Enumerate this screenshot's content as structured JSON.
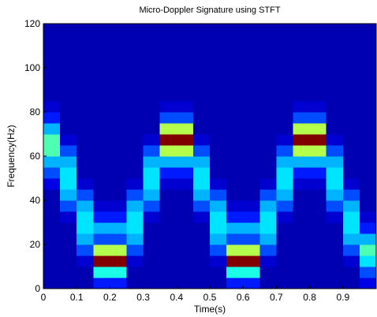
{
  "chart_data": {
    "type": "heatmap",
    "title": "Micro-Doppler Signature using STFT",
    "x_label": "Time(s)",
    "y_label": "Frequency(Hz)",
    "colormap": "jet",
    "xbins": [
      0,
      0.05,
      0.1,
      0.15,
      0.2,
      0.25,
      0.3,
      0.35,
      0.4,
      0.45,
      0.5,
      0.55,
      0.6,
      0.65,
      0.7,
      0.75,
      0.8,
      0.85,
      0.9,
      0.95,
      1
    ],
    "ybins": [
      0,
      5,
      10,
      15,
      20,
      25,
      30,
      35,
      40,
      45,
      50,
      55,
      60,
      65,
      70,
      75,
      80,
      85,
      90,
      95,
      100,
      105,
      110,
      115,
      120
    ],
    "z": [
      [
        0.05,
        0.05,
        0.05,
        0.15,
        0.15,
        0.05,
        0.05,
        0.05,
        0.05,
        0.05,
        0.05,
        0.15,
        0.15,
        0.05,
        0.05,
        0.05,
        0.05,
        0.05,
        0.05,
        0.1
      ],
      [
        0.05,
        0.05,
        0.05,
        0.4,
        0.4,
        0.05,
        0.05,
        0.05,
        0.05,
        0.05,
        0.05,
        0.4,
        0.4,
        0.05,
        0.05,
        0.05,
        0.05,
        0.05,
        0.05,
        0.2
      ],
      [
        0.05,
        0.05,
        0.08,
        1,
        1,
        0.08,
        0.05,
        0.05,
        0.05,
        0.05,
        0.08,
        1,
        1,
        0.08,
        0.05,
        0.05,
        0.05,
        0.05,
        0.08,
        0.35
      ],
      [
        0.05,
        0.05,
        0.2,
        0.55,
        0.55,
        0.2,
        0.05,
        0.05,
        0.05,
        0.05,
        0.2,
        0.55,
        0.55,
        0.2,
        0.05,
        0.05,
        0.05,
        0.05,
        0.2,
        0.45
      ],
      [
        0.05,
        0.05,
        0.3,
        0.2,
        0.2,
        0.3,
        0.05,
        0.05,
        0.05,
        0.05,
        0.3,
        0.2,
        0.2,
        0.3,
        0.05,
        0.05,
        0.05,
        0.05,
        0.3,
        0.3
      ],
      [
        0.05,
        0.05,
        0.35,
        0.3,
        0.3,
        0.35,
        0.05,
        0.05,
        0.05,
        0.05,
        0.35,
        0.3,
        0.3,
        0.35,
        0.05,
        0.05,
        0.05,
        0.05,
        0.35,
        0.15
      ],
      [
        0.05,
        0.08,
        0.35,
        0.15,
        0.15,
        0.35,
        0.08,
        0.05,
        0.05,
        0.08,
        0.35,
        0.15,
        0.15,
        0.35,
        0.08,
        0.05,
        0.05,
        0.08,
        0.35,
        0.08
      ],
      [
        0.05,
        0.2,
        0.3,
        0.08,
        0.08,
        0.3,
        0.2,
        0.05,
        0.05,
        0.2,
        0.3,
        0.08,
        0.08,
        0.3,
        0.2,
        0.05,
        0.05,
        0.2,
        0.3,
        0.05
      ],
      [
        0.05,
        0.3,
        0.2,
        0.05,
        0.05,
        0.2,
        0.3,
        0.05,
        0.05,
        0.3,
        0.2,
        0.05,
        0.05,
        0.2,
        0.3,
        0.05,
        0.05,
        0.3,
        0.2,
        0.05
      ],
      [
        0.1,
        0.35,
        0.08,
        0.05,
        0.05,
        0.08,
        0.35,
        0.08,
        0.08,
        0.35,
        0.08,
        0.05,
        0.05,
        0.08,
        0.35,
        0.08,
        0.08,
        0.35,
        0.08,
        0.05
      ],
      [
        0.2,
        0.35,
        0.05,
        0.05,
        0.05,
        0.05,
        0.35,
        0.15,
        0.15,
        0.35,
        0.05,
        0.05,
        0.05,
        0.05,
        0.35,
        0.15,
        0.15,
        0.35,
        0.05,
        0.05
      ],
      [
        0.3,
        0.3,
        0.05,
        0.05,
        0.05,
        0.05,
        0.3,
        0.3,
        0.3,
        0.3,
        0.05,
        0.05,
        0.05,
        0.05,
        0.3,
        0.3,
        0.3,
        0.3,
        0.05,
        0.05
      ],
      [
        0.45,
        0.2,
        0.05,
        0.05,
        0.05,
        0.05,
        0.2,
        0.55,
        0.55,
        0.2,
        0.05,
        0.05,
        0.05,
        0.05,
        0.2,
        0.55,
        0.55,
        0.2,
        0.05,
        0.05
      ],
      [
        0.45,
        0.08,
        0.05,
        0.05,
        0.05,
        0.05,
        0.08,
        1,
        1,
        0.08,
        0.05,
        0.05,
        0.05,
        0.05,
        0.08,
        1,
        1,
        0.08,
        0.05,
        0.05
      ],
      [
        0.3,
        0.05,
        0.05,
        0.05,
        0.05,
        0.05,
        0.05,
        0.55,
        0.55,
        0.05,
        0.05,
        0.05,
        0.05,
        0.05,
        0.05,
        0.55,
        0.55,
        0.05,
        0.05,
        0.05
      ],
      [
        0.15,
        0.05,
        0.05,
        0.05,
        0.05,
        0.05,
        0.05,
        0.2,
        0.2,
        0.05,
        0.05,
        0.05,
        0.05,
        0.05,
        0.05,
        0.2,
        0.2,
        0.05,
        0.05,
        0.05
      ],
      [
        0.08,
        0.05,
        0.05,
        0.05,
        0.05,
        0.05,
        0.05,
        0.08,
        0.08,
        0.05,
        0.05,
        0.05,
        0.05,
        0.05,
        0.05,
        0.08,
        0.08,
        0.05,
        0.05,
        0.05
      ],
      [
        0.05,
        0.05,
        0.05,
        0.05,
        0.05,
        0.05,
        0.05,
        0.05,
        0.05,
        0.05,
        0.05,
        0.05,
        0.05,
        0.05,
        0.05,
        0.05,
        0.05,
        0.05,
        0.05,
        0.05
      ],
      [
        0.05,
        0.05,
        0.05,
        0.05,
        0.05,
        0.05,
        0.05,
        0.05,
        0.05,
        0.05,
        0.05,
        0.05,
        0.05,
        0.05,
        0.05,
        0.05,
        0.05,
        0.05,
        0.05,
        0.05
      ],
      [
        0.05,
        0.05,
        0.05,
        0.05,
        0.05,
        0.05,
        0.05,
        0.05,
        0.05,
        0.05,
        0.05,
        0.05,
        0.05,
        0.05,
        0.05,
        0.05,
        0.05,
        0.05,
        0.05,
        0.05
      ],
      [
        0.05,
        0.05,
        0.05,
        0.05,
        0.05,
        0.05,
        0.05,
        0.05,
        0.05,
        0.05,
        0.05,
        0.05,
        0.05,
        0.05,
        0.05,
        0.05,
        0.05,
        0.05,
        0.05,
        0.05
      ],
      [
        0.05,
        0.05,
        0.05,
        0.05,
        0.05,
        0.05,
        0.05,
        0.05,
        0.05,
        0.05,
        0.05,
        0.05,
        0.05,
        0.05,
        0.05,
        0.05,
        0.05,
        0.05,
        0.05,
        0.05
      ],
      [
        0.05,
        0.05,
        0.05,
        0.05,
        0.05,
        0.05,
        0.05,
        0.05,
        0.05,
        0.05,
        0.05,
        0.05,
        0.05,
        0.05,
        0.05,
        0.05,
        0.05,
        0.05,
        0.05,
        0.05
      ],
      [
        0.05,
        0.05,
        0.05,
        0.05,
        0.05,
        0.05,
        0.05,
        0.05,
        0.05,
        0.05,
        0.05,
        0.05,
        0.05,
        0.05,
        0.05,
        0.05,
        0.05,
        0.05,
        0.05,
        0.05
      ]
    ],
    "xlim": [
      0,
      1
    ],
    "xticks": [
      0,
      0.1,
      0.2,
      0.3,
      0.4,
      0.5,
      0.6,
      0.7,
      0.8,
      0.9
    ],
    "ylim": [
      0,
      120
    ],
    "yticks": [
      0,
      20,
      40,
      60,
      80,
      100,
      120
    ]
  }
}
